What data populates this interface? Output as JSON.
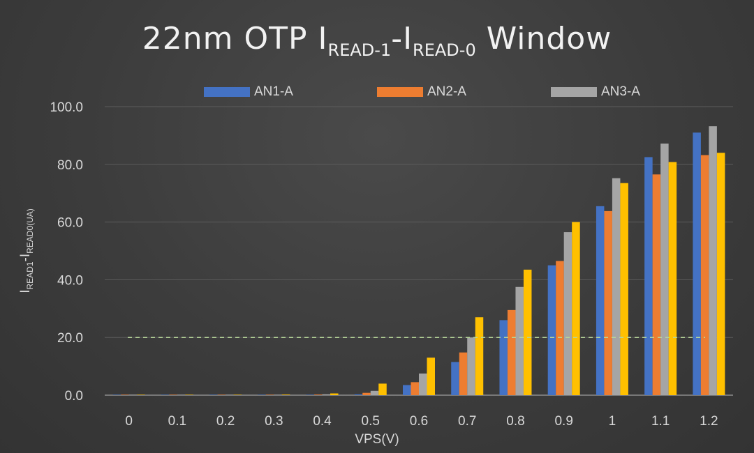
{
  "title": {
    "part1": "22nm OTP I",
    "sub1": "READ-1",
    "part2": "-I",
    "sub2": "READ-0",
    "part3": " Window"
  },
  "ylabel": {
    "part1": "I",
    "sub1": "READ1",
    "part2": "-I",
    "sub2": "READ0(UA)"
  },
  "xlabel": "VPS(V)",
  "chart_data": {
    "type": "bar",
    "title": "22nm OTP IREAD-1-IREAD-0 Window",
    "xlabel": "VPS(V)",
    "ylabel": "IREAD1-IREAD0(UA)",
    "categories": [
      "0",
      "0.1",
      "0.2",
      "0.3",
      "0.4",
      "0.5",
      "0.6",
      "0.7",
      "0.8",
      "0.9",
      "1",
      "1.1",
      "1.2"
    ],
    "yticks": [
      "0.0",
      "20.0",
      "40.0",
      "60.0",
      "80.0",
      "100.0"
    ],
    "ylim": [
      0,
      100
    ],
    "grid": true,
    "legend_position": "top",
    "reference_line": {
      "y": 20,
      "style": "dashed",
      "color": "#b7d69a"
    },
    "series": [
      {
        "name": "AN1-A",
        "color": "#4472c4",
        "values": [
          0.1,
          0.1,
          0.1,
          0.1,
          0.1,
          0.3,
          3.5,
          11.5,
          26.0,
          45.0,
          65.5,
          82.5,
          91.0
        ]
      },
      {
        "name": "AN2-A",
        "color": "#ed7d31",
        "values": [
          0.1,
          0.1,
          0.1,
          0.1,
          0.2,
          0.8,
          4.5,
          14.8,
          29.5,
          46.5,
          63.8,
          76.5,
          83.2
        ]
      },
      {
        "name": "AN3-A",
        "color": "#a5a5a5",
        "values": [
          0.1,
          0.1,
          0.1,
          0.1,
          0.3,
          1.5,
          7.5,
          20.0,
          37.5,
          56.5,
          75.2,
          87.2,
          93.2
        ]
      },
      {
        "name": "",
        "color": "#ffc000",
        "values": [
          0.1,
          0.1,
          0.1,
          0.2,
          0.6,
          4.0,
          13.0,
          27.0,
          43.5,
          60.0,
          73.5,
          80.8,
          84.0
        ]
      }
    ]
  }
}
